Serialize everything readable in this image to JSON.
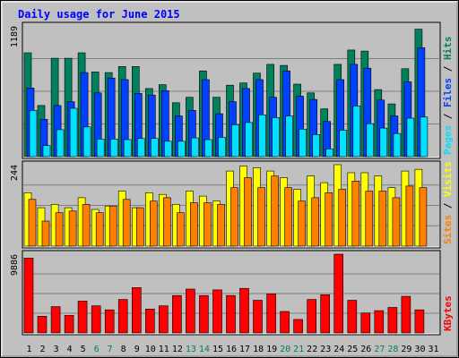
{
  "title": "Daily usage for June 2015",
  "colors": {
    "hits": "#00805c",
    "files": "#0040ff",
    "pages": "#00e0ff",
    "visits": "#ffff00",
    "sites": "#ff8000",
    "kbytes": "#ff0000",
    "title": "#0000ff",
    "weekend": "#00805c",
    "weekday": "#000000"
  },
  "chart_data": [
    {
      "type": "bar",
      "panel": "top",
      "ylabel_max": "1189",
      "ylim": [
        0,
        1189
      ],
      "legend": [
        "Pages",
        "Files",
        "Hits"
      ],
      "categories": [
        "1",
        "2",
        "3",
        "4",
        "5",
        "6",
        "7",
        "8",
        "9",
        "10",
        "11",
        "12",
        "13",
        "14",
        "15",
        "16",
        "17",
        "18",
        "19",
        "20",
        "21",
        "22",
        "23",
        "24",
        "25",
        "26",
        "27",
        "28",
        "29",
        "30",
        "31"
      ],
      "weekend_days": [
        "6",
        "7",
        "13",
        "14",
        "20",
        "21",
        "27",
        "28"
      ],
      "series": [
        {
          "name": "Hits",
          "values": [
            945,
            465,
            895,
            895,
            945,
            770,
            765,
            820,
            820,
            620,
            655,
            490,
            540,
            780,
            540,
            650,
            670,
            760,
            840,
            830,
            660,
            580,
            435,
            840,
            970,
            960,
            610,
            480,
            800,
            1160,
            0
          ]
        },
        {
          "name": "Files",
          "values": [
            625,
            340,
            465,
            500,
            765,
            580,
            715,
            700,
            575,
            560,
            600,
            370,
            420,
            700,
            390,
            500,
            620,
            700,
            540,
            780,
            550,
            520,
            320,
            700,
            840,
            805,
            515,
            370,
            680,
            990,
            0
          ]
        },
        {
          "name": "Pages",
          "values": [
            420,
            100,
            245,
            440,
            270,
            160,
            160,
            155,
            165,
            165,
            140,
            140,
            170,
            155,
            175,
            290,
            310,
            380,
            355,
            370,
            250,
            200,
            70,
            240,
            460,
            300,
            260,
            210,
            350,
            360,
            0
          ]
        }
      ]
    },
    {
      "type": "bar",
      "panel": "middle",
      "ylabel_max": "244",
      "ylim": [
        0,
        244
      ],
      "legend": [
        "Sites",
        "Visits"
      ],
      "categories": [
        "1",
        "2",
        "3",
        "4",
        "5",
        "6",
        "7",
        "8",
        "9",
        "10",
        "11",
        "12",
        "13",
        "14",
        "15",
        "16",
        "17",
        "18",
        "19",
        "20",
        "21",
        "22",
        "23",
        "24",
        "25",
        "26",
        "27",
        "28",
        "29",
        "30",
        "31"
      ],
      "series": [
        {
          "name": "Visits",
          "values": [
            160,
            115,
            125,
            115,
            145,
            110,
            120,
            165,
            115,
            160,
            155,
            125,
            165,
            150,
            135,
            225,
            240,
            235,
            225,
            205,
            170,
            210,
            190,
            250,
            220,
            220,
            210,
            175,
            225,
            230,
            0
          ]
        },
        {
          "name": "Sites",
          "values": [
            140,
            75,
            100,
            105,
            125,
            100,
            120,
            140,
            115,
            135,
            145,
            100,
            130,
            130,
            125,
            175,
            205,
            175,
            210,
            175,
            135,
            145,
            160,
            170,
            195,
            165,
            165,
            145,
            180,
            175,
            0
          ]
        }
      ]
    },
    {
      "type": "bar",
      "panel": "bottom",
      "ylabel_max": "9886",
      "ylim": [
        0,
        9886
      ],
      "legend": [
        "KBytes"
      ],
      "categories": [
        "1",
        "2",
        "3",
        "4",
        "5",
        "6",
        "7",
        "8",
        "9",
        "10",
        "11",
        "12",
        "13",
        "14",
        "15",
        "16",
        "17",
        "18",
        "19",
        "20",
        "21",
        "22",
        "23",
        "24",
        "25",
        "26",
        "27",
        "28",
        "29",
        "30",
        "31"
      ],
      "series": [
        {
          "name": "KBytes",
          "values": [
            9400,
            2100,
            3300,
            2200,
            4000,
            3400,
            2900,
            4200,
            5700,
            3000,
            3400,
            4700,
            5500,
            4700,
            5400,
            4700,
            5600,
            4100,
            4900,
            2700,
            1700,
            4200,
            4800,
            10000,
            4100,
            2500,
            2800,
            3200,
            4600,
            2900,
            0
          ]
        }
      ]
    }
  ]
}
